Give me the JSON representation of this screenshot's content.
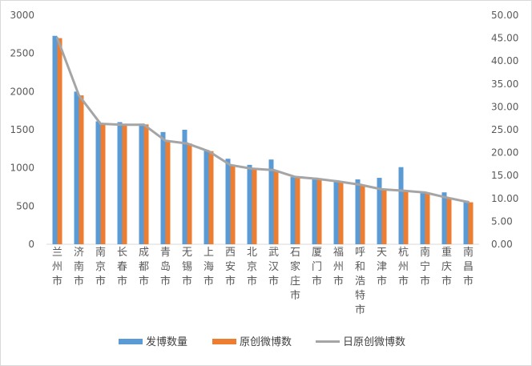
{
  "chart_data": {
    "type": "bar",
    "categories": [
      "兰州市",
      "济南市",
      "南京市",
      "长春市",
      "成都市",
      "青岛市",
      "无锡市",
      "上海市",
      "西安市",
      "北京市",
      "武汉市",
      "石家庄市",
      "厦门市",
      "福州市",
      "呼和浩特市",
      "天津市",
      "杭州市",
      "南宁市",
      "重庆市",
      "南昌市"
    ],
    "series": [
      {
        "name": "发博数量",
        "axis": "left",
        "kind": "bar",
        "color": "#5B9BD5",
        "values": [
          2730,
          2000,
          1610,
          1600,
          1580,
          1470,
          1500,
          1230,
          1120,
          1040,
          1110,
          880,
          870,
          840,
          850,
          870,
          1010,
          670,
          680,
          570
        ]
      },
      {
        "name": "原创微博数",
        "axis": "left",
        "kind": "bar",
        "color": "#ED7D31",
        "values": [
          2700,
          1950,
          1580,
          1570,
          1570,
          1360,
          1320,
          1220,
          1040,
          990,
          970,
          880,
          860,
          820,
          780,
          720,
          700,
          680,
          610,
          550
        ]
      },
      {
        "name": "日原创微博数",
        "axis": "right",
        "kind": "line",
        "color": "#A5A5A5",
        "values": [
          45.0,
          32.5,
          26.3,
          26.1,
          26.1,
          22.6,
          22.0,
          20.3,
          17.3,
          16.5,
          16.2,
          14.7,
          14.3,
          13.7,
          13.0,
          12.0,
          11.7,
          11.3,
          10.2,
          9.2
        ]
      }
    ],
    "y_left": {
      "min": 0,
      "max": 3000,
      "ticks": [
        "0",
        "500",
        "1000",
        "1500",
        "2000",
        "2500",
        "3000"
      ]
    },
    "y_right": {
      "min": 0,
      "max": 50,
      "ticks": [
        "0.00",
        "5.00",
        "10.00",
        "15.00",
        "20.00",
        "25.00",
        "30.00",
        "35.00",
        "40.00",
        "45.00",
        "50.00"
      ]
    },
    "legend_position": "bottom",
    "grid": false
  }
}
